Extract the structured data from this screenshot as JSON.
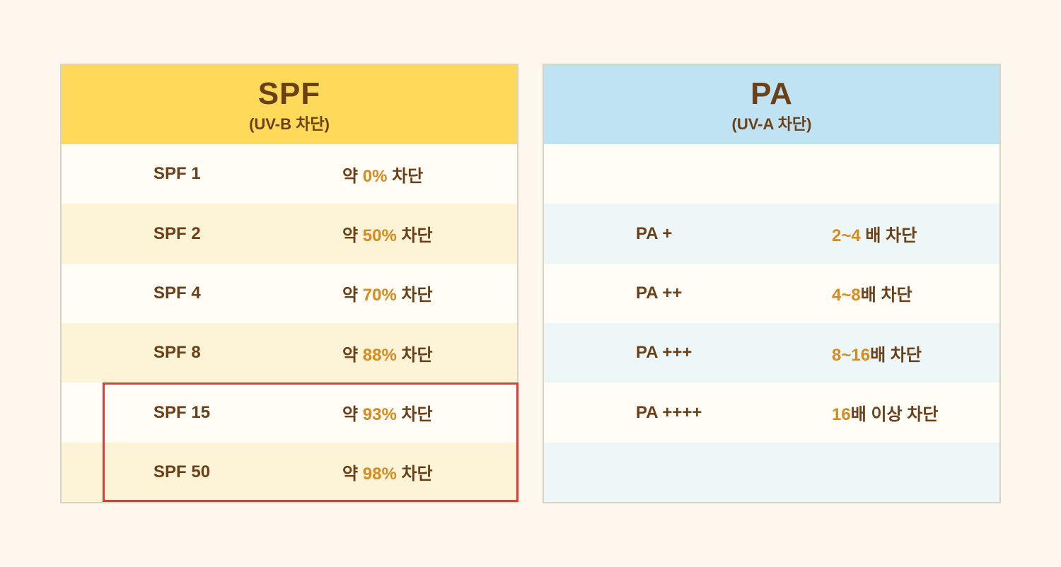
{
  "colors": {
    "page_bg": "#fdf7ee",
    "panel_border": "#d9d2c5",
    "text": "#6b3f17",
    "accent": "#d58b1e",
    "spf_header_bg": "#ffd95a",
    "pa_header_bg": "#bfe3f2",
    "spf_stripe_a": "#fffdf6",
    "spf_stripe_b": "#fdf3d6",
    "pa_stripe_a": "#fffdf6",
    "pa_stripe_b": "#eef7f7",
    "highlight_border": "#e53935"
  },
  "spf": {
    "title": "SPF",
    "subtitle": "(UV-B 차단)",
    "label_prefix": "SPF",
    "value_prefix": "약 ",
    "value_suffix": " 차단",
    "rows": [
      {
        "level": "1",
        "percent": "0%"
      },
      {
        "level": "2",
        "percent": "50%"
      },
      {
        "level": "4",
        "percent": "70%"
      },
      {
        "level": "8",
        "percent": "88%"
      },
      {
        "level": "15",
        "percent": "93%"
      },
      {
        "level": "50",
        "percent": "98%"
      }
    ],
    "highlight": {
      "from_row": 4,
      "to_row": 5
    }
  },
  "pa": {
    "title": "PA",
    "subtitle": "(UV-A 차단)",
    "label_prefix": "PA",
    "rows": [
      {
        "level": "",
        "range": "",
        "suffix": ""
      },
      {
        "level": "+",
        "range": "2~4 ",
        "suffix": "배 차단"
      },
      {
        "level": "++",
        "range": "4~8",
        "suffix": "배 차단"
      },
      {
        "level": "+++",
        "range": "8~16",
        "suffix": "배 차단"
      },
      {
        "level": "++++",
        "range": "16",
        "suffix": "배 이상 차단"
      },
      {
        "level": "",
        "range": "",
        "suffix": ""
      }
    ]
  }
}
